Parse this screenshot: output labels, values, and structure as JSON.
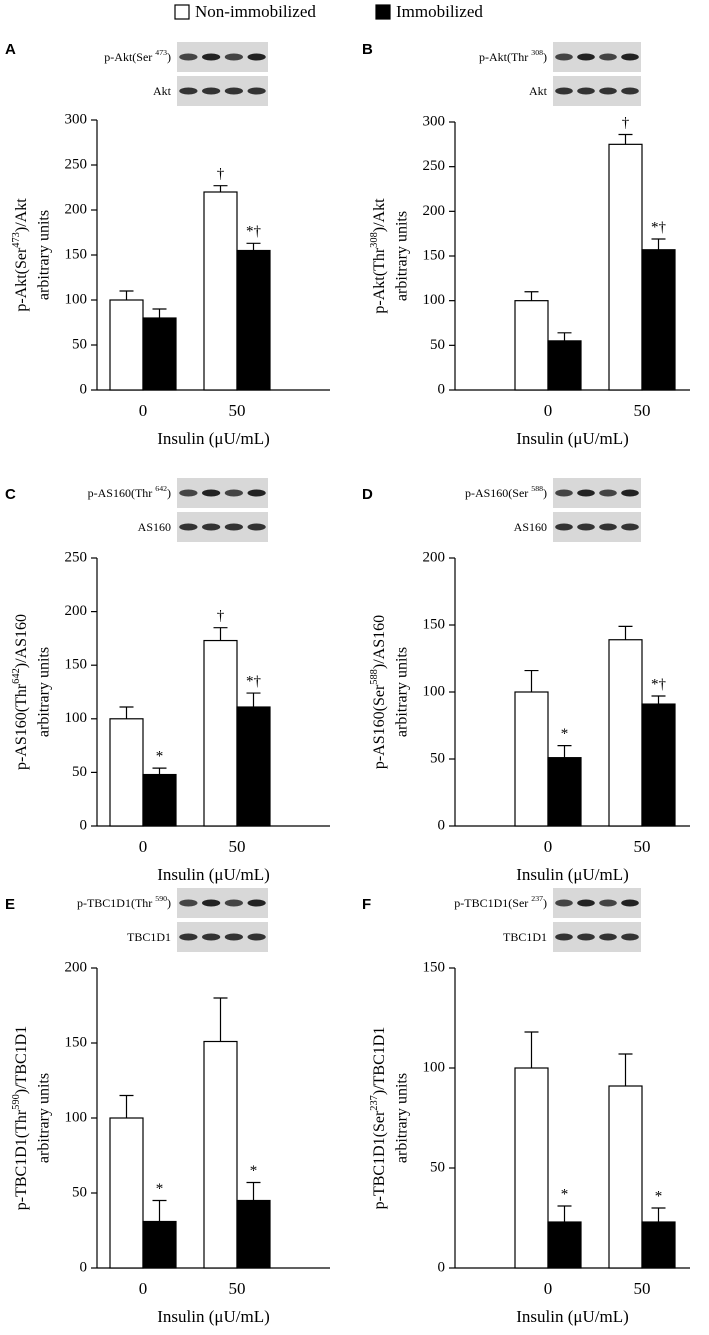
{
  "legend": [
    {
      "name": "Non-immobilized",
      "color": "#ffffff"
    },
    {
      "name": "Immobilized",
      "color": "#000000"
    }
  ],
  "chart_data": [
    {
      "type": "bar",
      "panel": "A",
      "blot_labels": [
        [
          "p-Akt(Ser ",
          "473",
          ")"
        ],
        [
          "Akt"
        ]
      ],
      "ylabel": [
        "p-Akt(Ser",
        "473",
        ")/Akt"
      ],
      "ylabel2": "arbitrary units",
      "xlabel": "Insulin (μU/mL)",
      "categories": [
        "0",
        "50"
      ],
      "ylim": [
        0,
        300
      ],
      "yticks": [
        0,
        50,
        100,
        150,
        200,
        250,
        300
      ],
      "series": [
        {
          "values": [
            100,
            220
          ],
          "errors": [
            10,
            7
          ],
          "annotations": [
            null,
            "†"
          ]
        },
        {
          "values": [
            80,
            155
          ],
          "errors": [
            10,
            8
          ],
          "annotations": [
            null,
            "*†"
          ]
        }
      ]
    },
    {
      "type": "bar",
      "panel": "B",
      "blot_labels": [
        [
          "p-Akt(Thr ",
          "308",
          ")"
        ],
        [
          "Akt"
        ]
      ],
      "ylabel": [
        "p-Akt(Thr",
        "308",
        ")/Akt"
      ],
      "ylabel2": "arbitrary units",
      "xlabel": "Insulin (μU/mL)",
      "categories": [
        "0",
        "50"
      ],
      "ylim": [
        0,
        300
      ],
      "yticks": [
        0,
        50,
        100,
        150,
        200,
        250,
        300
      ],
      "series": [
        {
          "values": [
            100,
            275
          ],
          "errors": [
            10,
            11
          ],
          "annotations": [
            null,
            "†"
          ]
        },
        {
          "values": [
            55,
            157
          ],
          "errors": [
            9,
            12
          ],
          "annotations": [
            null,
            "*†"
          ]
        }
      ]
    },
    {
      "type": "bar",
      "panel": "C",
      "blot_labels": [
        [
          "p-AS160(Thr ",
          "642",
          ")"
        ],
        [
          "AS160"
        ]
      ],
      "ylabel": [
        "p-AS160(Thr",
        "642",
        ")/AS160"
      ],
      "ylabel2": "arbitrary units",
      "xlabel": "Insulin (μU/mL)",
      "categories": [
        "0",
        "50"
      ],
      "ylim": [
        0,
        250
      ],
      "yticks": [
        0,
        50,
        100,
        150,
        200,
        250
      ],
      "series": [
        {
          "values": [
            100,
            173
          ],
          "errors": [
            11,
            12
          ],
          "annotations": [
            null,
            "†"
          ]
        },
        {
          "values": [
            48,
            111
          ],
          "errors": [
            6,
            13
          ],
          "annotations": [
            "*",
            "*†"
          ]
        }
      ]
    },
    {
      "type": "bar",
      "panel": "D",
      "blot_labels": [
        [
          "p-AS160(Ser ",
          "588",
          ")"
        ],
        [
          "AS160"
        ]
      ],
      "ylabel": [
        "p-AS160(Ser",
        "588",
        ")/AS160"
      ],
      "ylabel2": "arbitrary units",
      "xlabel": "Insulin (μU/mL)",
      "categories": [
        "0",
        "50"
      ],
      "ylim": [
        0,
        200
      ],
      "yticks": [
        0,
        50,
        100,
        150,
        200
      ],
      "series": [
        {
          "values": [
            100,
            139
          ],
          "errors": [
            16,
            10
          ],
          "annotations": [
            null,
            null
          ]
        },
        {
          "values": [
            51,
            91
          ],
          "errors": [
            9,
            6
          ],
          "annotations": [
            "*",
            "*†"
          ]
        }
      ]
    },
    {
      "type": "bar",
      "panel": "E",
      "blot_labels": [
        [
          "p-TBC1D1(Thr ",
          "590",
          ")"
        ],
        [
          "TBC1D1"
        ]
      ],
      "ylabel": [
        "p-TBC1D1(Thr",
        "590",
        ")/TBC1D1"
      ],
      "ylabel2": "arbitrary units",
      "xlabel": "Insulin (μU/mL)",
      "categories": [
        "0",
        "50"
      ],
      "ylim": [
        0,
        200
      ],
      "yticks": [
        0,
        50,
        100,
        150,
        200
      ],
      "series": [
        {
          "values": [
            100,
            151
          ],
          "errors": [
            15,
            29
          ],
          "annotations": [
            null,
            null
          ]
        },
        {
          "values": [
            31,
            45
          ],
          "errors": [
            14,
            12
          ],
          "annotations": [
            "*",
            "*"
          ]
        }
      ]
    },
    {
      "type": "bar",
      "panel": "F",
      "blot_labels": [
        [
          "p-TBC1D1(Ser ",
          "237",
          ")"
        ],
        [
          "TBC1D1"
        ]
      ],
      "ylabel": [
        "p-TBC1D1(Ser",
        "237",
        ")/TBC1D1"
      ],
      "ylabel2": "arbitrary units",
      "xlabel": "Insulin (μU/mL)",
      "categories": [
        "0",
        "50"
      ],
      "ylim": [
        0,
        150
      ],
      "yticks": [
        0,
        50,
        100,
        150
      ],
      "series": [
        {
          "values": [
            100,
            91
          ],
          "errors": [
            18,
            16
          ],
          "annotations": [
            null,
            null
          ]
        },
        {
          "values": [
            23,
            23
          ],
          "errors": [
            8,
            7
          ],
          "annotations": [
            "*",
            "*"
          ]
        }
      ]
    }
  ]
}
